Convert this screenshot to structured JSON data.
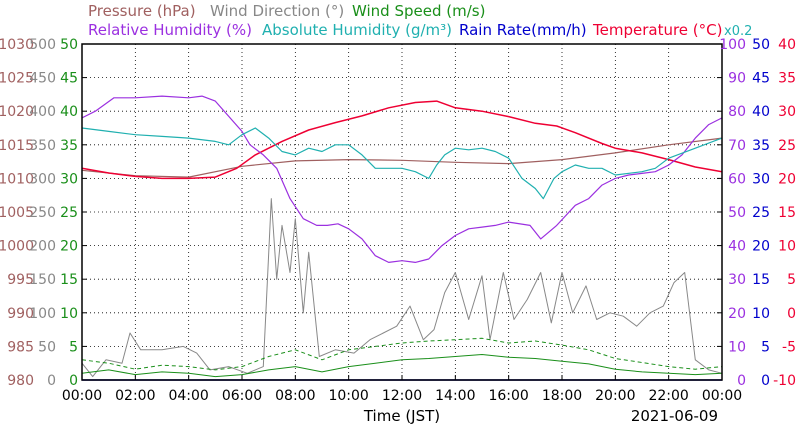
{
  "chart_data": {
    "type": "line",
    "xlabel": "Time (JST)",
    "date": "2021-06-09",
    "x": [
      "00:00",
      "02:00",
      "04:00",
      "06:00",
      "08:00",
      "10:00",
      "12:00",
      "14:00",
      "16:00",
      "18:00",
      "20:00",
      "22:00",
      "00:00"
    ],
    "xlim_hours": [
      0,
      24
    ],
    "grid": true,
    "legend_rows": [
      [
        {
          "name": "Pressure (hPa)",
          "color": "#a06060"
        },
        {
          "name": "Wind Direction (°)",
          "color": "#888888"
        },
        {
          "name": "Wind Speed (m/s)",
          "color": "#1a8f1a"
        }
      ],
      [
        {
          "name": "Relative Humidity (%)",
          "color": "#9b30e0"
        },
        {
          "name": "Absolute Humidity (g/m³)",
          "color": "#20b0b0"
        },
        {
          "name": "Rain Rate(mm/h)",
          "color": "#0000cc"
        },
        {
          "name": "Temperature (°C)",
          "color": "#ee0033"
        },
        {
          "name": "x0.2",
          "color": "#20b0b0"
        }
      ]
    ],
    "axes": {
      "pressure": {
        "label": "Pressure (hPa)",
        "color": "#a06060",
        "range": [
          980,
          1030
        ],
        "ticks": [
          "980",
          "985",
          "990",
          "995",
          "1000",
          "1005",
          "1010",
          "1015",
          "1020",
          "1025",
          "1030"
        ]
      },
      "wind_direction": {
        "label": "Wind Direction (°)",
        "color": "#888888",
        "range": [
          0,
          500
        ],
        "ticks": [
          "0",
          "50",
          "100",
          "150",
          "200",
          "250",
          "300",
          "350",
          "400",
          "450",
          "500"
        ]
      },
      "wind_speed": {
        "label": "Wind Speed (m/s)",
        "color": "#1a8f1a",
        "range": [
          0,
          50
        ],
        "ticks": [
          "0",
          "5",
          "10",
          "15",
          "20",
          "25",
          "30",
          "35",
          "40",
          "45",
          "50"
        ]
      },
      "humidity": {
        "label": "Relative Humidity (%)",
        "color": "#9b30e0",
        "range": [
          0,
          100
        ],
        "ticks": [
          "0",
          "10",
          "20",
          "30",
          "40",
          "50",
          "60",
          "70",
          "80",
          "90",
          "100"
        ]
      },
      "rain_rate": {
        "label": "Rain Rate(mm/h)",
        "color": "#0000cc",
        "range": [
          0,
          50
        ],
        "ticks": [
          "0",
          "5",
          "10",
          "15",
          "20",
          "25",
          "30",
          "35",
          "40",
          "45",
          "50"
        ]
      },
      "temperature": {
        "label": "Temperature (°C)",
        "color": "#ee0033",
        "range": [
          -10,
          40
        ],
        "ticks": [
          "-10",
          "-5",
          "0",
          "5",
          "10",
          "15",
          "20",
          "25",
          "30",
          "35",
          "40"
        ]
      }
    },
    "series": [
      {
        "name": "Pressure (hPa)",
        "axis": "pressure",
        "color": "#a06060",
        "width": 1.2,
        "points": [
          [
            0,
            1011.2
          ],
          [
            2,
            1010.4
          ],
          [
            4,
            1010.2
          ],
          [
            6,
            1011.8
          ],
          [
            8,
            1012.6
          ],
          [
            10,
            1012.8
          ],
          [
            12,
            1012.7
          ],
          [
            14,
            1012.4
          ],
          [
            16,
            1012.2
          ],
          [
            18,
            1012.8
          ],
          [
            20,
            1013.8
          ],
          [
            22,
            1015.0
          ],
          [
            24,
            1016.0
          ]
        ]
      },
      {
        "name": "Temperature (°C)",
        "axis": "temperature",
        "color": "#ee0033",
        "width": 1.5,
        "points": [
          [
            0,
            21.5
          ],
          [
            1,
            20.8
          ],
          [
            2,
            20.3
          ],
          [
            3,
            20.0
          ],
          [
            4,
            20.0
          ],
          [
            5,
            20.2
          ],
          [
            5.8,
            21.5
          ],
          [
            6.5,
            23.5
          ],
          [
            7.5,
            25.5
          ],
          [
            8.5,
            27.2
          ],
          [
            9.5,
            28.3
          ],
          [
            10.5,
            29.3
          ],
          [
            11.5,
            30.5
          ],
          [
            12.5,
            31.3
          ],
          [
            13.3,
            31.5
          ],
          [
            14,
            30.5
          ],
          [
            15,
            30.0
          ],
          [
            16,
            29.2
          ],
          [
            17,
            28.2
          ],
          [
            17.8,
            27.8
          ],
          [
            18.5,
            26.8
          ],
          [
            19.5,
            25.2
          ],
          [
            20,
            24.5
          ],
          [
            21,
            23.8
          ],
          [
            22,
            22.8
          ],
          [
            23,
            21.7
          ],
          [
            24,
            21.0
          ]
        ]
      },
      {
        "name": "Relative Humidity (%)",
        "axis": "humidity",
        "color": "#9b30e0",
        "width": 1.2,
        "points": [
          [
            0,
            78
          ],
          [
            0.5,
            80
          ],
          [
            1.2,
            84
          ],
          [
            2,
            84
          ],
          [
            3,
            84.5
          ],
          [
            4,
            84
          ],
          [
            4.5,
            84.5
          ],
          [
            5,
            83
          ],
          [
            6,
            74
          ],
          [
            6.3,
            70
          ],
          [
            6.8,
            67
          ],
          [
            7.3,
            63
          ],
          [
            7.8,
            54
          ],
          [
            8.3,
            48
          ],
          [
            8.8,
            46
          ],
          [
            9.2,
            46
          ],
          [
            9.6,
            46.5
          ],
          [
            10,
            45
          ],
          [
            10.5,
            42
          ],
          [
            11,
            37
          ],
          [
            11.5,
            35
          ],
          [
            12,
            35.5
          ],
          [
            12.5,
            35
          ],
          [
            13,
            36
          ],
          [
            13.5,
            40
          ],
          [
            14,
            43
          ],
          [
            14.5,
            45
          ],
          [
            15,
            45.5
          ],
          [
            15.5,
            46
          ],
          [
            16,
            47
          ],
          [
            16.8,
            46
          ],
          [
            17.2,
            42
          ],
          [
            17.8,
            46
          ],
          [
            18.5,
            52
          ],
          [
            19,
            54
          ],
          [
            19.5,
            58
          ],
          [
            20,
            60
          ],
          [
            20.5,
            61
          ],
          [
            21,
            61.5
          ],
          [
            21.5,
            62
          ],
          [
            22,
            64
          ],
          [
            22.5,
            67
          ],
          [
            23,
            72
          ],
          [
            23.5,
            76
          ],
          [
            24,
            78
          ]
        ]
      },
      {
        "name": "Absolute Humidity (g/m³)",
        "axis": "humidity",
        "color": "#20b0b0",
        "width": 1.2,
        "points": [
          [
            0,
            75
          ],
          [
            1,
            74
          ],
          [
            2,
            73
          ],
          [
            3,
            72.5
          ],
          [
            4,
            72
          ],
          [
            5,
            71
          ],
          [
            5.5,
            70
          ],
          [
            6,
            73
          ],
          [
            6.5,
            75
          ],
          [
            7,
            72
          ],
          [
            7.5,
            68
          ],
          [
            8,
            67
          ],
          [
            8.5,
            69
          ],
          [
            9,
            68
          ],
          [
            9.5,
            70
          ],
          [
            10,
            70
          ],
          [
            10.5,
            67
          ],
          [
            11,
            63
          ],
          [
            11.5,
            63
          ],
          [
            12,
            63
          ],
          [
            12.5,
            62
          ],
          [
            13,
            60
          ],
          [
            13.3,
            64
          ],
          [
            13.6,
            67
          ],
          [
            14,
            69
          ],
          [
            14.5,
            68.5
          ],
          [
            15,
            69
          ],
          [
            15.5,
            68
          ],
          [
            16,
            66
          ],
          [
            16.5,
            60
          ],
          [
            17,
            57
          ],
          [
            17.3,
            54
          ],
          [
            17.7,
            60
          ],
          [
            18,
            62
          ],
          [
            18.5,
            64
          ],
          [
            19,
            63
          ],
          [
            19.5,
            63
          ],
          [
            20,
            61
          ],
          [
            21,
            62
          ],
          [
            21.5,
            63
          ],
          [
            22,
            66
          ],
          [
            23,
            69
          ],
          [
            24,
            72
          ]
        ]
      },
      {
        "name": "Wind Direction (°)",
        "axis": "wind_direction",
        "color": "#888888",
        "width": 1.0,
        "points": [
          [
            0,
            25
          ],
          [
            0.4,
            5
          ],
          [
            0.9,
            30
          ],
          [
            1.5,
            25
          ],
          [
            1.8,
            70
          ],
          [
            2.2,
            45
          ],
          [
            3,
            45
          ],
          [
            3.8,
            50
          ],
          [
            4.3,
            40
          ],
          [
            4.8,
            15
          ],
          [
            5.5,
            20
          ],
          [
            6.2,
            10
          ],
          [
            6.8,
            20
          ],
          [
            7.1,
            270
          ],
          [
            7.3,
            150
          ],
          [
            7.5,
            230
          ],
          [
            7.8,
            160
          ],
          [
            8,
            240
          ],
          [
            8.3,
            100
          ],
          [
            8.5,
            190
          ],
          [
            8.9,
            35
          ],
          [
            9.5,
            45
          ],
          [
            10.2,
            40
          ],
          [
            10.8,
            60
          ],
          [
            11.3,
            70
          ],
          [
            11.8,
            80
          ],
          [
            12.3,
            110
          ],
          [
            12.8,
            60
          ],
          [
            13.2,
            75
          ],
          [
            13.6,
            130
          ],
          [
            14,
            160
          ],
          [
            14.5,
            90
          ],
          [
            15,
            155
          ],
          [
            15.3,
            60
          ],
          [
            15.8,
            160
          ],
          [
            16.2,
            90
          ],
          [
            16.7,
            120
          ],
          [
            17.2,
            160
          ],
          [
            17.6,
            85
          ],
          [
            18,
            160
          ],
          [
            18.4,
            100
          ],
          [
            18.9,
            140
          ],
          [
            19.3,
            90
          ],
          [
            19.8,
            100
          ],
          [
            20.3,
            95
          ],
          [
            20.8,
            80
          ],
          [
            21.3,
            100
          ],
          [
            21.8,
            110
          ],
          [
            22.2,
            145
          ],
          [
            22.6,
            160
          ],
          [
            23,
            30
          ],
          [
            23.5,
            15
          ],
          [
            24,
            10
          ]
        ]
      },
      {
        "name": "Wind Speed (m/s)",
        "axis": "wind_speed",
        "color": "#1a8f1a",
        "width": 1.0,
        "points": [
          [
            0,
            1
          ],
          [
            1,
            1.5
          ],
          [
            2,
            0.8
          ],
          [
            3,
            1.2
          ],
          [
            4,
            1
          ],
          [
            5,
            0.5
          ],
          [
            6,
            0.8
          ],
          [
            7,
            1.5
          ],
          [
            8,
            2
          ],
          [
            9,
            1.2
          ],
          [
            10,
            2
          ],
          [
            11,
            2.5
          ],
          [
            12,
            3
          ],
          [
            13,
            3.2
          ],
          [
            14,
            3.5
          ],
          [
            15,
            3.8
          ],
          [
            16,
            3.4
          ],
          [
            17,
            3.2
          ],
          [
            18,
            2.8
          ],
          [
            19,
            2.4
          ],
          [
            20,
            1.6
          ],
          [
            21,
            1.2
          ],
          [
            22,
            1
          ],
          [
            23,
            0.8
          ],
          [
            24,
            1
          ]
        ]
      },
      {
        "name": "Wind Speed gust (m/s)",
        "axis": "wind_speed",
        "color": "#1a8f1a",
        "width": 1.0,
        "dash": true,
        "points": [
          [
            0,
            3
          ],
          [
            1,
            2.5
          ],
          [
            2,
            1.6
          ],
          [
            3,
            2.2
          ],
          [
            4,
            2
          ],
          [
            5,
            1.5
          ],
          [
            6,
            2
          ],
          [
            7,
            3.5
          ],
          [
            8,
            4.5
          ],
          [
            9,
            3
          ],
          [
            10,
            4.5
          ],
          [
            11,
            5
          ],
          [
            12,
            5.5
          ],
          [
            13,
            5.8
          ],
          [
            14,
            6
          ],
          [
            15,
            6.2
          ],
          [
            16,
            5.5
          ],
          [
            17,
            5.8
          ],
          [
            18,
            5.2
          ],
          [
            19,
            4.5
          ],
          [
            20,
            3.2
          ],
          [
            21,
            2.6
          ],
          [
            22,
            2
          ],
          [
            23,
            1.6
          ],
          [
            24,
            2
          ]
        ]
      },
      {
        "name": "Rain Rate(mm/h)",
        "axis": "rain_rate",
        "color": "#0000cc",
        "width": 1.5,
        "points": [
          [
            0,
            0
          ],
          [
            24,
            0
          ]
        ]
      }
    ]
  }
}
